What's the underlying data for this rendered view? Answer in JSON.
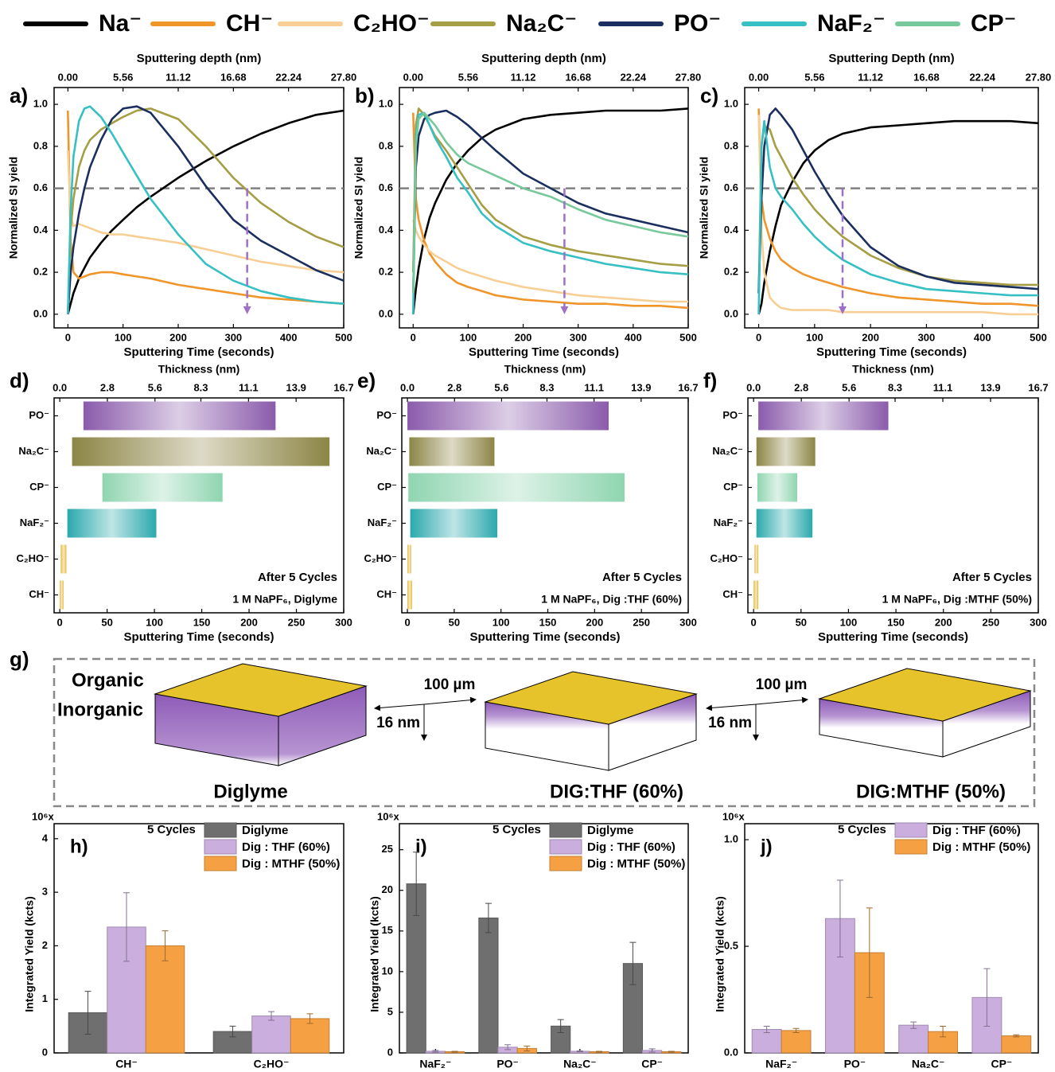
{
  "chart_data": [
    {
      "type": "line",
      "panel": "a)",
      "x_label": "Sputtering Time (seconds)",
      "x2_label": "Sputtering depth (nm)",
      "y_label": "Normalized SI yield",
      "xlim": [
        -25,
        500
      ],
      "xticks": [
        0,
        100,
        200,
        300,
        400,
        500
      ],
      "x2lim": [
        -1.39,
        27.8
      ],
      "x2ticks": [
        {
          "value": 0,
          "label": "0.00"
        },
        5.56,
        11.12,
        16.68,
        22.24,
        {
          "value": 27.8,
          "label": "27.80"
        }
      ],
      "ylim": [
        -0.065,
        1.08
      ],
      "yticks": [
        {
          "value": 0,
          "label": "0.0"
        },
        0.2,
        0.4,
        0.6,
        0.8,
        {
          "value": 1,
          "label": "1.0"
        }
      ],
      "threshold": 0.6,
      "threshold_time": 325,
      "x": [
        0,
        5,
        10,
        20,
        30,
        40,
        60,
        80,
        100,
        125,
        150,
        200,
        250,
        300,
        350,
        400,
        450,
        500
      ],
      "series": [
        {
          "name": "Na⁻",
          "color": "#000000",
          "values": [
            0.0,
            0.05,
            0.1,
            0.17,
            0.22,
            0.27,
            0.34,
            0.4,
            0.45,
            0.51,
            0.56,
            0.65,
            0.73,
            0.8,
            0.86,
            0.91,
            0.95,
            0.97
          ]
        },
        {
          "name": "CH⁻",
          "color": "#f0952a",
          "values": [
            0.97,
            0.35,
            0.2,
            0.17,
            0.18,
            0.19,
            0.2,
            0.2,
            0.19,
            0.18,
            0.17,
            0.14,
            0.12,
            0.1,
            0.08,
            0.07,
            0.06,
            0.05
          ]
        },
        {
          "name": "C₂HO⁻",
          "color": "#f7cf95",
          "values": [
            0.78,
            0.47,
            0.42,
            0.43,
            0.42,
            0.41,
            0.39,
            0.38,
            0.38,
            0.37,
            0.36,
            0.34,
            0.31,
            0.28,
            0.25,
            0.23,
            0.21,
            0.2
          ]
        },
        {
          "name": "Na₂C⁻",
          "color": "#a69e45",
          "values": [
            0.0,
            0.4,
            0.55,
            0.7,
            0.78,
            0.83,
            0.88,
            0.91,
            0.94,
            0.97,
            0.98,
            0.93,
            0.8,
            0.65,
            0.53,
            0.44,
            0.37,
            0.32
          ]
        },
        {
          "name": "PO⁻",
          "color": "#1b2f5e",
          "values": [
            0.0,
            0.2,
            0.32,
            0.48,
            0.6,
            0.7,
            0.83,
            0.93,
            0.98,
            0.99,
            0.96,
            0.8,
            0.61,
            0.45,
            0.35,
            0.28,
            0.21,
            0.16
          ]
        },
        {
          "name": "NaF₂⁻",
          "color": "#36c0c4",
          "values": [
            0.0,
            0.5,
            0.75,
            0.92,
            0.98,
            0.99,
            0.94,
            0.86,
            0.77,
            0.66,
            0.55,
            0.38,
            0.24,
            0.16,
            0.11,
            0.08,
            0.06,
            0.05
          ]
        }
      ]
    },
    {
      "type": "line",
      "panel": "b)",
      "x_label": "Sputtering Time (seconds)",
      "x2_label": "Sputtering depth (nm)",
      "y_label": "Normalized SI yield",
      "xlim": [
        -25,
        500
      ],
      "xticks": [
        0,
        100,
        200,
        300,
        400,
        500
      ],
      "x2lim": [
        -1.39,
        27.8
      ],
      "x2ticks": [
        {
          "value": 0,
          "label": "0.00"
        },
        5.56,
        11.12,
        16.68,
        22.24,
        {
          "value": 27.8,
          "label": "27.80"
        }
      ],
      "ylim": [
        -0.065,
        1.08
      ],
      "yticks": [
        {
          "value": 0,
          "label": "0.0"
        },
        0.2,
        0.4,
        0.6,
        0.8,
        {
          "value": 1,
          "label": "1.0"
        }
      ],
      "threshold": 0.6,
      "threshold_time": 275,
      "x": [
        0,
        5,
        10,
        20,
        30,
        40,
        60,
        80,
        100,
        125,
        150,
        200,
        250,
        300,
        350,
        400,
        450,
        500
      ],
      "series": [
        {
          "name": "Na⁻",
          "color": "#000000",
          "values": [
            0.0,
            0.12,
            0.22,
            0.36,
            0.46,
            0.53,
            0.64,
            0.72,
            0.78,
            0.84,
            0.88,
            0.93,
            0.95,
            0.96,
            0.97,
            0.97,
            0.97,
            0.98
          ]
        },
        {
          "name": "CH⁻",
          "color": "#f0952a",
          "values": [
            0.96,
            0.55,
            0.45,
            0.35,
            0.29,
            0.25,
            0.19,
            0.15,
            0.13,
            0.11,
            0.09,
            0.07,
            0.06,
            0.05,
            0.05,
            0.04,
            0.04,
            0.03
          ]
        },
        {
          "name": "C₂HO⁻",
          "color": "#f7cf95",
          "values": [
            0.45,
            0.4,
            0.37,
            0.33,
            0.3,
            0.28,
            0.25,
            0.22,
            0.2,
            0.18,
            0.16,
            0.13,
            0.11,
            0.09,
            0.08,
            0.07,
            0.06,
            0.06
          ]
        },
        {
          "name": "Na₂C⁻",
          "color": "#a69e45",
          "values": [
            0.2,
            0.9,
            0.98,
            0.95,
            0.9,
            0.85,
            0.78,
            0.7,
            0.62,
            0.52,
            0.45,
            0.37,
            0.33,
            0.3,
            0.28,
            0.26,
            0.24,
            0.23
          ]
        },
        {
          "name": "PO⁻",
          "color": "#1b2f5e",
          "values": [
            0.1,
            0.7,
            0.85,
            0.93,
            0.95,
            0.96,
            0.97,
            0.94,
            0.9,
            0.84,
            0.78,
            0.67,
            0.6,
            0.53,
            0.48,
            0.45,
            0.42,
            0.39
          ]
        },
        {
          "name": "NaF₂⁻",
          "color": "#36c0c4",
          "values": [
            0.0,
            0.85,
            0.95,
            0.96,
            0.9,
            0.84,
            0.75,
            0.65,
            0.58,
            0.48,
            0.42,
            0.34,
            0.3,
            0.27,
            0.24,
            0.22,
            0.2,
            0.19
          ]
        },
        {
          "name": "CP⁻",
          "color": "#77c89a",
          "values": [
            0.1,
            0.8,
            0.93,
            0.96,
            0.93,
            0.9,
            0.82,
            0.76,
            0.72,
            0.69,
            0.66,
            0.6,
            0.56,
            0.5,
            0.45,
            0.42,
            0.39,
            0.37
          ]
        }
      ]
    },
    {
      "type": "line",
      "panel": "c)",
      "x_label": "Sputtering Time (seconds)",
      "x2_label": "Sputtering Depth (nm)",
      "y_label": "Normalized SI yield",
      "xlim": [
        -25,
        500
      ],
      "xticks": [
        0,
        100,
        200,
        300,
        400,
        500
      ],
      "x2lim": [
        -1.39,
        27.8
      ],
      "x2ticks": [
        {
          "value": 0,
          "label": "0.00"
        },
        5.56,
        11.12,
        16.68,
        22.24,
        {
          "value": 27.8,
          "label": "27.80"
        }
      ],
      "ylim": [
        -0.065,
        1.08
      ],
      "yticks": [
        {
          "value": 0,
          "label": "0.0"
        },
        0.2,
        0.4,
        0.6,
        0.8,
        {
          "value": 1,
          "label": "1.0"
        }
      ],
      "threshold": 0.6,
      "threshold_time": 150,
      "x": [
        0,
        5,
        10,
        20,
        30,
        40,
        60,
        80,
        100,
        125,
        150,
        200,
        250,
        300,
        350,
        400,
        450,
        500
      ],
      "series": [
        {
          "name": "Na⁻",
          "color": "#000000",
          "values": [
            0.0,
            0.05,
            0.15,
            0.3,
            0.42,
            0.52,
            0.63,
            0.72,
            0.78,
            0.83,
            0.86,
            0.89,
            0.9,
            0.91,
            0.92,
            0.92,
            0.92,
            0.91
          ]
        },
        {
          "name": "CH⁻",
          "color": "#f0952a",
          "values": [
            0.98,
            0.55,
            0.45,
            0.36,
            0.3,
            0.26,
            0.22,
            0.19,
            0.17,
            0.15,
            0.13,
            0.1,
            0.08,
            0.07,
            0.06,
            0.05,
            0.05,
            0.04
          ]
        },
        {
          "name": "C₂HO⁻",
          "color": "#f7cf95",
          "values": [
            0.95,
            0.4,
            0.2,
            0.08,
            0.05,
            0.03,
            0.02,
            0.02,
            0.02,
            0.02,
            0.01,
            0.01,
            0.01,
            0.01,
            0.01,
            0.01,
            0.0,
            0.0
          ]
        },
        {
          "name": "Na₂C⁻",
          "color": "#a69e45",
          "values": [
            0.1,
            0.8,
            0.9,
            0.88,
            0.8,
            0.75,
            0.65,
            0.57,
            0.5,
            0.43,
            0.37,
            0.28,
            0.22,
            0.18,
            0.16,
            0.15,
            0.14,
            0.14
          ]
        },
        {
          "name": "PO⁻",
          "color": "#1b2f5e",
          "values": [
            0.1,
            0.55,
            0.8,
            0.95,
            0.98,
            0.95,
            0.88,
            0.78,
            0.68,
            0.57,
            0.47,
            0.32,
            0.23,
            0.18,
            0.15,
            0.14,
            0.13,
            0.12
          ]
        },
        {
          "name": "NaF₂⁻",
          "color": "#36c0c4",
          "values": [
            0.0,
            0.8,
            0.92,
            0.7,
            0.6,
            0.56,
            0.5,
            0.43,
            0.37,
            0.31,
            0.26,
            0.19,
            0.15,
            0.12,
            0.11,
            0.1,
            0.09,
            0.09
          ]
        }
      ]
    },
    {
      "type": "range_bar",
      "panel": "d)",
      "x_label": "Sputtering Time (seconds)",
      "x2_label": "Thickness (nm)",
      "xlim": [
        -6,
        300
      ],
      "xticks": [
        0,
        50,
        100,
        150,
        200,
        250,
        300
      ],
      "x2lim": [
        -0.334,
        16.7
      ],
      "x2ticks": [
        {
          "value": 0,
          "label": "0.0"
        },
        2.8,
        5.6,
        8.3,
        11.1,
        13.9,
        16.7
      ],
      "categories": [
        "PO⁻",
        "Na₂C⁻",
        "CP⁻",
        "NaF₂⁻",
        "C₂HO⁻",
        "CH⁻"
      ],
      "starts": [
        25,
        13,
        45,
        8,
        1,
        0
      ],
      "ends": [
        228,
        285,
        172,
        102,
        7,
        4
      ],
      "colors": [
        "#8a5bab",
        "#8c8545",
        "#8fd5b0",
        "#2aa9ad",
        "#e6b93c",
        "#e6b93c"
      ],
      "annotation": "After 5 Cycles",
      "condition": "1 M NaPF₆, Diglyme",
      "condition_color": "#8c8c8c"
    },
    {
      "type": "range_bar",
      "panel": "e)",
      "x_label": "Sputtering Time (seconds)",
      "x2_label": "Thickness (nm)",
      "xlim": [
        -6,
        300
      ],
      "xticks": [
        0,
        50,
        100,
        150,
        200,
        250,
        300
      ],
      "x2lim": [
        -0.334,
        16.7
      ],
      "x2ticks": [
        {
          "value": 0,
          "label": "0.0"
        },
        2.8,
        5.6,
        8.3,
        11.1,
        13.9,
        16.7
      ],
      "categories": [
        "PO⁻",
        "Na₂C⁻",
        "CP⁻",
        "NaF₂⁻",
        "C₂HO⁻",
        "CH⁻"
      ],
      "starts": [
        0,
        2,
        1,
        3,
        0,
        0
      ],
      "ends": [
        215,
        93,
        232,
        96,
        4,
        5
      ],
      "colors": [
        "#8a5bab",
        "#8c8545",
        "#8fd5b0",
        "#2aa9ad",
        "#e6b93c",
        "#e6b93c"
      ],
      "annotation": "After 5 Cycles",
      "condition": "1 M NaPF₆, Dig :THF (60%)",
      "condition_color": "#a97fcc"
    },
    {
      "type": "range_bar",
      "panel": "f)",
      "x_label": "Sputtering Time (seconds)",
      "x2_label": "Thickness (nm)",
      "xlim": [
        -6,
        300
      ],
      "xticks": [
        0,
        50,
        100,
        150,
        200,
        250,
        300
      ],
      "x2lim": [
        -0.334,
        16.7
      ],
      "x2ticks": [
        {
          "value": 0,
          "label": "0.0"
        },
        2.8,
        5.6,
        8.3,
        11.1,
        13.9,
        16.7
      ],
      "categories": [
        "PO⁻",
        "Na₂C⁻",
        "CP⁻",
        "NaF₂⁻",
        "C₂HO⁻",
        "CH⁻"
      ],
      "starts": [
        5,
        3,
        4,
        3,
        1,
        0
      ],
      "ends": [
        142,
        65,
        46,
        62,
        5,
        5
      ],
      "colors": [
        "#8a5bab",
        "#8c8545",
        "#8fd5b0",
        "#2aa9ad",
        "#e6b93c",
        "#e6b93c"
      ],
      "annotation": "After 5 Cycles",
      "condition": "1 M NaPF₆, Dig :MTHF (50%)",
      "condition_color": "#f28c1e"
    },
    {
      "type": "grouped_bar",
      "panel": "h)",
      "y_label": "Integrated Yield (kcts)",
      "y_unit": "10⁶x",
      "legend_title": "5 Cycles",
      "categories": [
        "CH⁻",
        "C₂HO⁻"
      ],
      "ylim": [
        0,
        4.28
      ],
      "yticks": [
        0,
        1,
        2,
        3,
        4
      ],
      "series": [
        {
          "name": "Diglyme",
          "color": "#6f6f6f",
          "values": [
            0.75,
            0.4
          ],
          "errors": [
            0.4,
            0.1
          ]
        },
        {
          "name": "Dig : THF (60%)",
          "color": "#c9aede",
          "values": [
            2.35,
            0.69
          ],
          "errors": [
            0.64,
            0.08
          ]
        },
        {
          "name": "Dig : MTHF (50%)",
          "color": "#f5a043",
          "values": [
            2.0,
            0.64
          ],
          "errors": [
            0.28,
            0.09
          ]
        }
      ]
    },
    {
      "type": "grouped_bar",
      "panel": "i)",
      "y_label": "Integrated Yield (kcts)",
      "y_unit": "10⁶x",
      "legend_title": "5 Cycles",
      "categories": [
        "NaF₂⁻",
        "PO⁻",
        "Na₂C⁻",
        "CP⁻"
      ],
      "ylim": [
        0,
        28.2
      ],
      "yticks": [
        0,
        5,
        10,
        15,
        20,
        25
      ],
      "series": [
        {
          "name": "Diglyme",
          "color": "#6f6f6f",
          "values": [
            20.8,
            16.6,
            3.3,
            11.0
          ],
          "errors": [
            3.9,
            1.8,
            0.8,
            2.6
          ]
        },
        {
          "name": "Dig : THF (60%)",
          "color": "#c9aede",
          "values": [
            0.2,
            0.7,
            0.2,
            0.3
          ],
          "errors": [
            0.1,
            0.3,
            0.05,
            0.2
          ]
        },
        {
          "name": "Dig : MTHF (50%)",
          "color": "#f5a043",
          "values": [
            0.15,
            0.55,
            0.15,
            0.15
          ],
          "errors": [
            0.05,
            0.3,
            0.05,
            0.05
          ]
        }
      ]
    },
    {
      "type": "grouped_bar",
      "panel": "j)",
      "y_label": "Integrated Yield (kcts)",
      "y_unit": "10⁶x",
      "legend_title": "5 Cycles",
      "categories": [
        "NaF₂⁻",
        "PO⁻",
        "Na₂C⁻",
        "CP⁻"
      ],
      "ylim": [
        0,
        1.075
      ],
      "yticks": [
        {
          "value": 0,
          "label": "0.0"
        },
        0.5,
        {
          "value": 1,
          "label": "1.0"
        }
      ],
      "series": [
        {
          "name": "Dig : THF (60%)",
          "color": "#c9aede",
          "values": [
            0.11,
            0.63,
            0.13,
            0.26
          ],
          "errors": [
            0.015,
            0.18,
            0.015,
            0.135
          ]
        },
        {
          "name": "Dig : MTHF (50%)",
          "color": "#f5a043",
          "values": [
            0.105,
            0.47,
            0.1,
            0.08
          ],
          "errors": [
            0.01,
            0.21,
            0.025,
            0.005
          ]
        }
      ]
    }
  ],
  "panel_g": {
    "label": "g)",
    "phases": [
      {
        "name": "Organic",
        "color": "#e6c32a"
      },
      {
        "name": "Inorganic",
        "color": "#8e5bb8"
      }
    ],
    "scale_lateral": "100 µm",
    "scale_depth": "16 nm",
    "samples": [
      {
        "name": "Diglyme",
        "color": "#808080"
      },
      {
        "name": "DIG:THF (60%)",
        "color": "#c49ddc"
      },
      {
        "name": "DIG:MTHF (50%)",
        "color": "#f5a54a"
      }
    ]
  }
}
